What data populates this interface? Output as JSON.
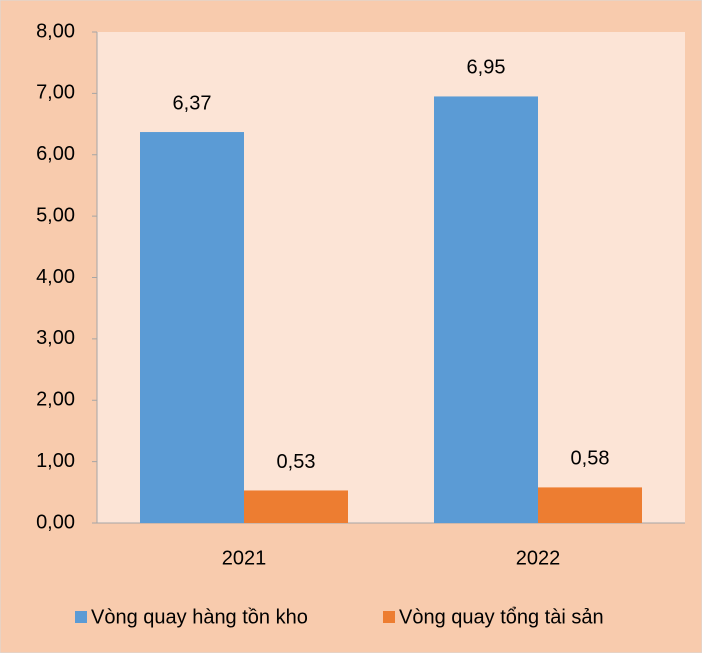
{
  "chart_data": {
    "type": "bar",
    "categories": [
      "2021",
      "2022"
    ],
    "series": [
      {
        "name": "Vòng quay hàng tồn kho",
        "color": "#5b9bd5",
        "values": [
          6.37,
          6.95
        ],
        "value_labels": [
          "6,37",
          "6,95"
        ]
      },
      {
        "name": "Vòng quay tổng tài sản",
        "color": "#ed7d31",
        "values": [
          0.53,
          0.58
        ],
        "value_labels": [
          "0,53",
          "0,58"
        ]
      }
    ],
    "ylim": [
      0,
      8
    ],
    "yticks": [
      {
        "value": 0,
        "label": "0,00"
      },
      {
        "value": 1,
        "label": "1,00"
      },
      {
        "value": 2,
        "label": "2,00"
      },
      {
        "value": 3,
        "label": "3,00"
      },
      {
        "value": 4,
        "label": "4,00"
      },
      {
        "value": 5,
        "label": "5,00"
      },
      {
        "value": 6,
        "label": "6,00"
      },
      {
        "value": 7,
        "label": "7,00"
      },
      {
        "value": 8,
        "label": "8,00"
      }
    ],
    "legend": "bottom"
  }
}
